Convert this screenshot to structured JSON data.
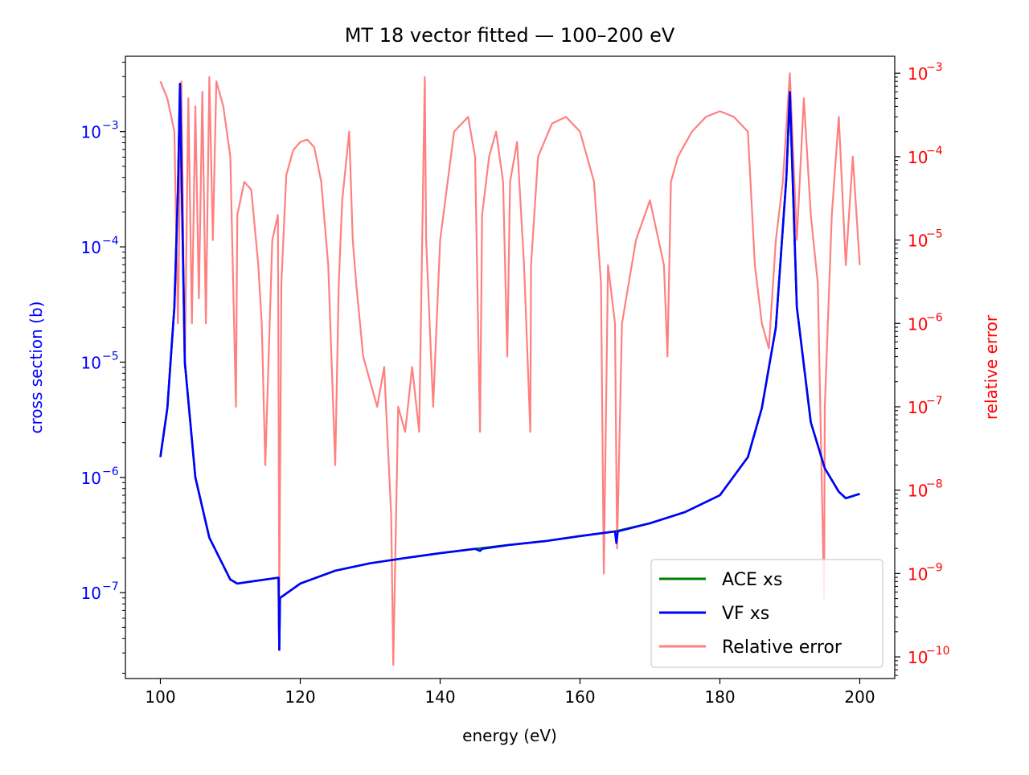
{
  "chart_data": {
    "type": "line",
    "title": "MT 18 vector fitted — 100–200 eV",
    "xlabel": "energy (eV)",
    "ylabel_left": "cross section (b)",
    "ylabel_right": "relative error",
    "xlim": [
      95,
      205
    ],
    "ylim_left": [
      1.8e-08,
      0.0045
    ],
    "ylim_right": [
      5.5e-11,
      0.0016
    ],
    "yscale_left": "log",
    "yscale_right": "log",
    "x_ticks": [
      "100",
      "120",
      "140",
      "160",
      "180",
      "200"
    ],
    "y_left_ticks": [
      {
        "base": "10",
        "exp": "−3",
        "value": 0.001
      },
      {
        "base": "10",
        "exp": "−4",
        "value": 0.0001
      },
      {
        "base": "10",
        "exp": "−5",
        "value": 1e-05
      },
      {
        "base": "10",
        "exp": "−6",
        "value": 1e-06
      },
      {
        "base": "10",
        "exp": "−7",
        "value": 1e-07
      }
    ],
    "y_right_ticks": [
      {
        "base": "10",
        "exp": "−3",
        "value": 0.001
      },
      {
        "base": "10",
        "exp": "−4",
        "value": 0.0001
      },
      {
        "base": "10",
        "exp": "−5",
        "value": 1e-05
      },
      {
        "base": "10",
        "exp": "−6",
        "value": 1e-06
      },
      {
        "base": "10",
        "exp": "−7",
        "value": 1e-07
      },
      {
        "base": "10",
        "exp": "−8",
        "value": 1e-08
      },
      {
        "base": "10",
        "exp": "−9",
        "value": 1e-09
      },
      {
        "base": "10",
        "exp": "−10",
        "value": 1e-10
      }
    ],
    "legend_position": "bottom-right",
    "grid": false,
    "series": [
      {
        "name": "ACE xs",
        "axis": "left",
        "color": "#008000",
        "x": [
          100,
          101,
          102,
          102.5,
          102.8,
          103.5,
          105,
          107,
          110,
          111,
          113,
          116.9,
          117,
          117.1,
          120,
          125,
          130,
          135,
          140,
          145,
          150,
          155,
          160,
          165,
          170,
          175,
          180,
          184,
          186,
          188,
          189.5,
          190,
          191,
          193,
          195,
          197,
          198,
          200
        ],
        "values": [
          1.5e-06,
          4e-06,
          3e-05,
          0.0003,
          0.0026,
          1e-05,
          1e-06,
          3e-07,
          1.3e-07,
          1.2e-07,
          1.25e-07,
          1.35e-07,
          3.2e-08,
          9e-08,
          1.2e-07,
          1.55e-07,
          1.8e-07,
          2e-07,
          2.2e-07,
          2.4e-07,
          2.6e-07,
          2.8e-07,
          3.1e-07,
          3.4e-07,
          4e-07,
          5e-07,
          7e-07,
          1.5e-06,
          4e-06,
          2e-05,
          0.0004,
          0.0022,
          3e-05,
          3e-06,
          1.2e-06,
          7.5e-07,
          6.6e-07,
          7.2e-07
        ]
      },
      {
        "name": "VF xs",
        "axis": "left",
        "color": "#0000ff",
        "x": [
          100,
          101,
          102,
          102.5,
          102.8,
          103.5,
          105,
          107,
          110,
          111,
          113,
          116.9,
          117,
          117.1,
          120,
          125,
          130,
          135,
          140,
          145,
          145.7,
          146,
          150,
          155,
          160,
          165,
          165.2,
          165.4,
          170,
          175,
          180,
          184,
          186,
          188,
          189.5,
          190,
          191,
          193,
          195,
          197,
          198,
          200
        ],
        "values": [
          1.5e-06,
          4e-06,
          3e-05,
          0.0003,
          0.0026,
          1e-05,
          1e-06,
          3e-07,
          1.3e-07,
          1.2e-07,
          1.25e-07,
          1.35e-07,
          3.2e-08,
          9e-08,
          1.2e-07,
          1.55e-07,
          1.8e-07,
          2e-07,
          2.2e-07,
          2.4e-07,
          2.3e-07,
          2.4e-07,
          2.6e-07,
          2.8e-07,
          3.1e-07,
          3.4e-07,
          2.7e-07,
          3.4e-07,
          4e-07,
          5e-07,
          7e-07,
          1.5e-06,
          4e-06,
          2e-05,
          0.0004,
          0.0022,
          3e-05,
          3e-06,
          1.2e-06,
          7.5e-07,
          6.6e-07,
          7.2e-07
        ]
      },
      {
        "name": "Relative error",
        "axis": "right",
        "color": "#ff8080",
        "x": [
          100,
          101,
          102,
          102.5,
          103,
          103.5,
          104,
          104.5,
          105,
          105.5,
          106,
          106.5,
          107,
          107.5,
          108,
          109,
          110,
          110.8,
          111,
          112,
          113,
          114,
          114.5,
          115,
          116,
          116.8,
          117,
          117.3,
          118,
          119,
          120,
          121,
          122,
          123,
          124,
          125,
          125.5,
          126,
          127,
          127.5,
          128,
          129,
          130,
          131,
          132,
          133,
          133.3,
          134,
          135,
          136,
          137,
          137.8,
          138,
          139,
          140,
          142,
          144,
          145,
          145.7,
          146,
          147,
          148,
          149,
          149.6,
          150,
          151,
          152,
          152.9,
          153,
          154,
          156,
          158,
          160,
          162,
          163,
          163.4,
          164,
          165,
          165.3,
          166,
          168,
          170,
          172,
          172.5,
          173,
          174,
          176,
          178,
          180,
          182,
          184,
          185,
          186,
          187,
          188,
          189,
          190,
          191,
          192,
          193,
          194,
          194.9,
          195,
          196,
          197,
          198,
          199,
          200
        ],
        "values": [
          0.0008,
          0.0005,
          0.0002,
          1e-06,
          0.0008,
          3e-07,
          0.0005,
          1e-06,
          0.0004,
          2e-06,
          0.0006,
          1e-06,
          0.0009,
          1e-05,
          0.0008,
          0.0004,
          0.0001,
          1e-07,
          2e-05,
          5e-05,
          4e-05,
          5e-06,
          1e-06,
          2e-08,
          1e-05,
          2e-05,
          5e-10,
          3e-06,
          6e-05,
          0.00012,
          0.00015,
          0.00016,
          0.00013,
          5e-05,
          5e-06,
          2e-08,
          3e-06,
          3e-05,
          0.0002,
          1e-05,
          3e-06,
          4e-07,
          2e-07,
          1e-07,
          3e-07,
          5e-09,
          8e-11,
          1e-07,
          5e-08,
          3e-07,
          5e-08,
          0.0009,
          1e-05,
          1e-07,
          1e-05,
          0.0002,
          0.0003,
          0.0001,
          5e-08,
          2e-05,
          0.0001,
          0.0002,
          5e-05,
          4e-07,
          5e-05,
          0.00015,
          5e-06,
          5e-08,
          5e-06,
          0.0001,
          0.00025,
          0.0003,
          0.0002,
          5e-05,
          3e-06,
          1e-09,
          5e-06,
          1e-06,
          2e-09,
          1e-06,
          1e-05,
          3e-05,
          5e-06,
          4e-07,
          5e-05,
          0.0001,
          0.0002,
          0.0003,
          0.00035,
          0.0003,
          0.0002,
          5e-06,
          1e-06,
          5e-07,
          1e-05,
          5e-05,
          0.001,
          1e-05,
          0.0005,
          2e-05,
          3e-06,
          5e-10,
          1e-07,
          2e-05,
          0.0003,
          5e-06,
          0.0001,
          5e-06
        ]
      }
    ]
  }
}
